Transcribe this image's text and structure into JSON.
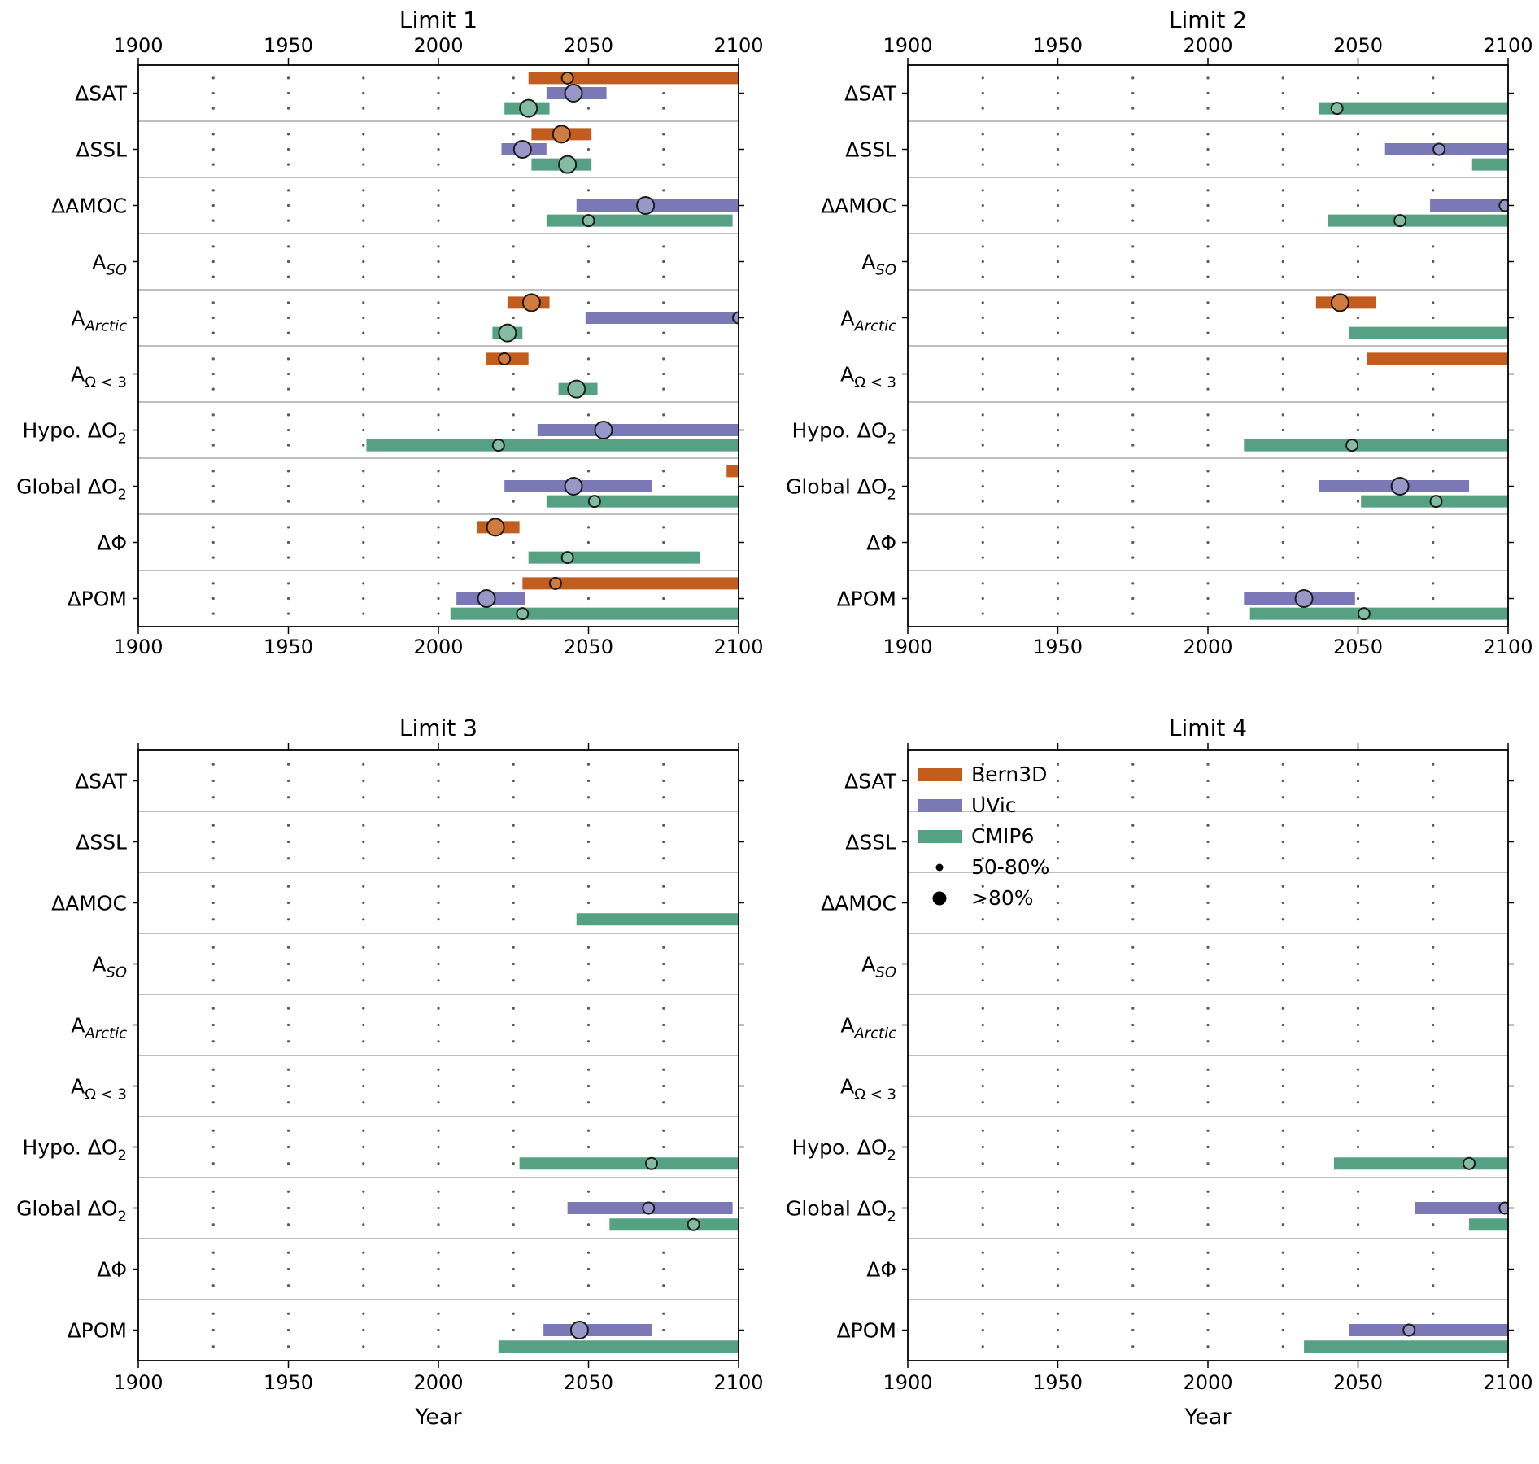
{
  "figure": {
    "background": "#ffffff"
  },
  "axis": {
    "x_min": 1900,
    "x_max": 2100,
    "tick_values": [
      1900,
      1950,
      2000,
      2050,
      2100
    ],
    "tick_labels": [
      "1900",
      "1950",
      "2000",
      "2050",
      "2100"
    ],
    "dot_years": [
      1925,
      1950,
      1975,
      2000,
      2025,
      2050,
      2075
    ],
    "xlabel": "Year"
  },
  "categories": [
    {
      "id": "dSAT",
      "pre": "ΔSAT",
      "sub": "",
      "italic": false
    },
    {
      "id": "dSSL",
      "pre": "ΔSSL",
      "sub": "",
      "italic": false
    },
    {
      "id": "dAMOC",
      "pre": "ΔAMOC",
      "sub": "",
      "italic": false
    },
    {
      "id": "A_SO",
      "pre": "A",
      "sub": "SO",
      "italic": true
    },
    {
      "id": "A_Arctic",
      "pre": "A",
      "sub": "Arctic",
      "italic": true
    },
    {
      "id": "A_Omega3",
      "pre": "A",
      "sub": "Ω < 3",
      "italic": false
    },
    {
      "id": "Hypo_dO2",
      "pre": "Hypo. ΔO",
      "sub": "2",
      "italic": false
    },
    {
      "id": "Global_dO2",
      "pre": "Global ΔO",
      "sub": "2",
      "italic": false
    },
    {
      "id": "dPhi",
      "pre": "ΔΦ",
      "sub": "",
      "italic": false
    },
    {
      "id": "dPOM",
      "pre": "ΔPOM",
      "sub": "",
      "italic": false
    }
  ],
  "models": [
    {
      "id": "Bern3D",
      "label": "Bern3D",
      "color": "#c05d1f",
      "marker_fill": "#d07c40"
    },
    {
      "id": "UVic",
      "label": "UVic",
      "color": "#7b79b5",
      "marker_fill": "#9997c8"
    },
    {
      "id": "CMIP6",
      "label": "CMIP6",
      "color": "#56a183",
      "marker_fill": "#84bba3"
    }
  ],
  "legend": {
    "size_items": [
      {
        "label": "50-80%",
        "radius": 4.5
      },
      {
        "label": ">80%",
        "radius": 8.5
      }
    ]
  },
  "chart_data": [
    {
      "type": "bar",
      "title": "Limit 1",
      "x_range": [
        1900,
        2100
      ],
      "show_top_tick_labels": true,
      "show_xlabel": false,
      "show_legend": false,
      "bars": [
        {
          "category": "dSAT",
          "model": "Bern3D",
          "start": 2030,
          "end": 2100,
          "marker": 2043,
          "confidence": "50-80%"
        },
        {
          "category": "dSAT",
          "model": "UVic",
          "start": 2036,
          "end": 2056,
          "marker": 2045,
          "confidence": ">80%"
        },
        {
          "category": "dSAT",
          "model": "CMIP6",
          "start": 2022,
          "end": 2037,
          "marker": 2030,
          "confidence": ">80%"
        },
        {
          "category": "dSSL",
          "model": "Bern3D",
          "start": 2031,
          "end": 2051,
          "marker": 2041,
          "confidence": ">80%"
        },
        {
          "category": "dSSL",
          "model": "UVic",
          "start": 2021,
          "end": 2036,
          "marker": 2028,
          "confidence": ">80%"
        },
        {
          "category": "dSSL",
          "model": "CMIP6",
          "start": 2031,
          "end": 2051,
          "marker": 2043,
          "confidence": ">80%"
        },
        {
          "category": "dAMOC",
          "model": "UVic",
          "start": 2046,
          "end": 2100,
          "marker": 2069,
          "confidence": ">80%"
        },
        {
          "category": "dAMOC",
          "model": "CMIP6",
          "start": 2036,
          "end": 2098,
          "marker": 2050,
          "confidence": "50-80%"
        },
        {
          "category": "A_Arctic",
          "model": "Bern3D",
          "start": 2023,
          "end": 2037,
          "marker": 2031,
          "confidence": ">80%"
        },
        {
          "category": "A_Arctic",
          "model": "UVic",
          "start": 2049,
          "end": 2100,
          "marker": 2100,
          "confidence": "50-80%"
        },
        {
          "category": "A_Arctic",
          "model": "CMIP6",
          "start": 2018,
          "end": 2028,
          "marker": 2023,
          "confidence": ">80%"
        },
        {
          "category": "A_Omega3",
          "model": "Bern3D",
          "start": 2016,
          "end": 2030,
          "marker": 2022,
          "confidence": "50-80%"
        },
        {
          "category": "A_Omega3",
          "model": "CMIP6",
          "start": 2040,
          "end": 2053,
          "marker": 2046,
          "confidence": ">80%"
        },
        {
          "category": "Hypo_dO2",
          "model": "UVic",
          "start": 2033,
          "end": 2100,
          "marker": 2055,
          "confidence": ">80%"
        },
        {
          "category": "Hypo_dO2",
          "model": "CMIP6",
          "start": 1976,
          "end": 2100,
          "marker": 2020,
          "confidence": "50-80%"
        },
        {
          "category": "Global_dO2",
          "model": "Bern3D",
          "start": 2096,
          "end": 2100,
          "marker": null,
          "confidence": null
        },
        {
          "category": "Global_dO2",
          "model": "UVic",
          "start": 2022,
          "end": 2071,
          "marker": 2045,
          "confidence": ">80%"
        },
        {
          "category": "Global_dO2",
          "model": "CMIP6",
          "start": 2036,
          "end": 2100,
          "marker": 2052,
          "confidence": "50-80%"
        },
        {
          "category": "dPhi",
          "model": "Bern3D",
          "start": 2013,
          "end": 2027,
          "marker": 2019,
          "confidence": ">80%"
        },
        {
          "category": "dPhi",
          "model": "CMIP6",
          "start": 2030,
          "end": 2087,
          "marker": 2043,
          "confidence": "50-80%"
        },
        {
          "category": "dPOM",
          "model": "Bern3D",
          "start": 2028,
          "end": 2100,
          "marker": 2039,
          "confidence": "50-80%"
        },
        {
          "category": "dPOM",
          "model": "UVic",
          "start": 2006,
          "end": 2029,
          "marker": 2016,
          "confidence": ">80%"
        },
        {
          "category": "dPOM",
          "model": "CMIP6",
          "start": 2004,
          "end": 2100,
          "marker": 2028,
          "confidence": "50-80%"
        }
      ]
    },
    {
      "type": "bar",
      "title": "Limit 2",
      "x_range": [
        1900,
        2100
      ],
      "show_top_tick_labels": true,
      "show_xlabel": false,
      "show_legend": false,
      "bars": [
        {
          "category": "dSAT",
          "model": "CMIP6",
          "start": 2037,
          "end": 2100,
          "marker": 2043,
          "confidence": "50-80%"
        },
        {
          "category": "dSSL",
          "model": "UVic",
          "start": 2059,
          "end": 2100,
          "marker": 2077,
          "confidence": "50-80%"
        },
        {
          "category": "dSSL",
          "model": "CMIP6",
          "start": 2088,
          "end": 2100,
          "marker": null,
          "confidence": null
        },
        {
          "category": "dAMOC",
          "model": "UVic",
          "start": 2074,
          "end": 2100,
          "marker": 2099,
          "confidence": "50-80%"
        },
        {
          "category": "dAMOC",
          "model": "CMIP6",
          "start": 2040,
          "end": 2100,
          "marker": 2064,
          "confidence": "50-80%"
        },
        {
          "category": "A_Arctic",
          "model": "Bern3D",
          "start": 2036,
          "end": 2056,
          "marker": 2044,
          "confidence": ">80%"
        },
        {
          "category": "A_Arctic",
          "model": "CMIP6",
          "start": 2047,
          "end": 2100,
          "marker": null,
          "confidence": null
        },
        {
          "category": "A_Omega3",
          "model": "Bern3D",
          "start": 2053,
          "end": 2100,
          "marker": null,
          "confidence": null
        },
        {
          "category": "Hypo_dO2",
          "model": "CMIP6",
          "start": 2012,
          "end": 2100,
          "marker": 2048,
          "confidence": "50-80%"
        },
        {
          "category": "Global_dO2",
          "model": "UVic",
          "start": 2037,
          "end": 2087,
          "marker": 2064,
          "confidence": ">80%"
        },
        {
          "category": "Global_dO2",
          "model": "CMIP6",
          "start": 2051,
          "end": 2100,
          "marker": 2076,
          "confidence": "50-80%"
        },
        {
          "category": "dPOM",
          "model": "UVic",
          "start": 2012,
          "end": 2049,
          "marker": 2032,
          "confidence": ">80%"
        },
        {
          "category": "dPOM",
          "model": "CMIP6",
          "start": 2014,
          "end": 2100,
          "marker": 2052,
          "confidence": "50-80%"
        }
      ]
    },
    {
      "type": "bar",
      "title": "Limit 3",
      "x_range": [
        1900,
        2100
      ],
      "show_top_tick_labels": false,
      "show_xlabel": true,
      "show_legend": false,
      "bars": [
        {
          "category": "dAMOC",
          "model": "CMIP6",
          "start": 2046,
          "end": 2100,
          "marker": null,
          "confidence": null
        },
        {
          "category": "Hypo_dO2",
          "model": "CMIP6",
          "start": 2027,
          "end": 2100,
          "marker": 2071,
          "confidence": "50-80%"
        },
        {
          "category": "Global_dO2",
          "model": "UVic",
          "start": 2043,
          "end": 2098,
          "marker": 2070,
          "confidence": "50-80%"
        },
        {
          "category": "Global_dO2",
          "model": "CMIP6",
          "start": 2057,
          "end": 2100,
          "marker": 2085,
          "confidence": "50-80%"
        },
        {
          "category": "dPOM",
          "model": "UVic",
          "start": 2035,
          "end": 2071,
          "marker": 2047,
          "confidence": ">80%"
        },
        {
          "category": "dPOM",
          "model": "CMIP6",
          "start": 2020,
          "end": 2100,
          "marker": null,
          "confidence": null
        }
      ]
    },
    {
      "type": "bar",
      "title": "Limit 4",
      "x_range": [
        1900,
        2100
      ],
      "show_top_tick_labels": false,
      "show_xlabel": true,
      "show_legend": true,
      "bars": [
        {
          "category": "Hypo_dO2",
          "model": "CMIP6",
          "start": 2042,
          "end": 2100,
          "marker": 2087,
          "confidence": "50-80%"
        },
        {
          "category": "Global_dO2",
          "model": "UVic",
          "start": 2069,
          "end": 2100,
          "marker": 2099,
          "confidence": "50-80%"
        },
        {
          "category": "Global_dO2",
          "model": "CMIP6",
          "start": 2087,
          "end": 2100,
          "marker": null,
          "confidence": null
        },
        {
          "category": "dPOM",
          "model": "UVic",
          "start": 2047,
          "end": 2100,
          "marker": 2067,
          "confidence": "50-80%"
        },
        {
          "category": "dPOM",
          "model": "CMIP6",
          "start": 2032,
          "end": 2100,
          "marker": null,
          "confidence": null
        }
      ]
    }
  ]
}
